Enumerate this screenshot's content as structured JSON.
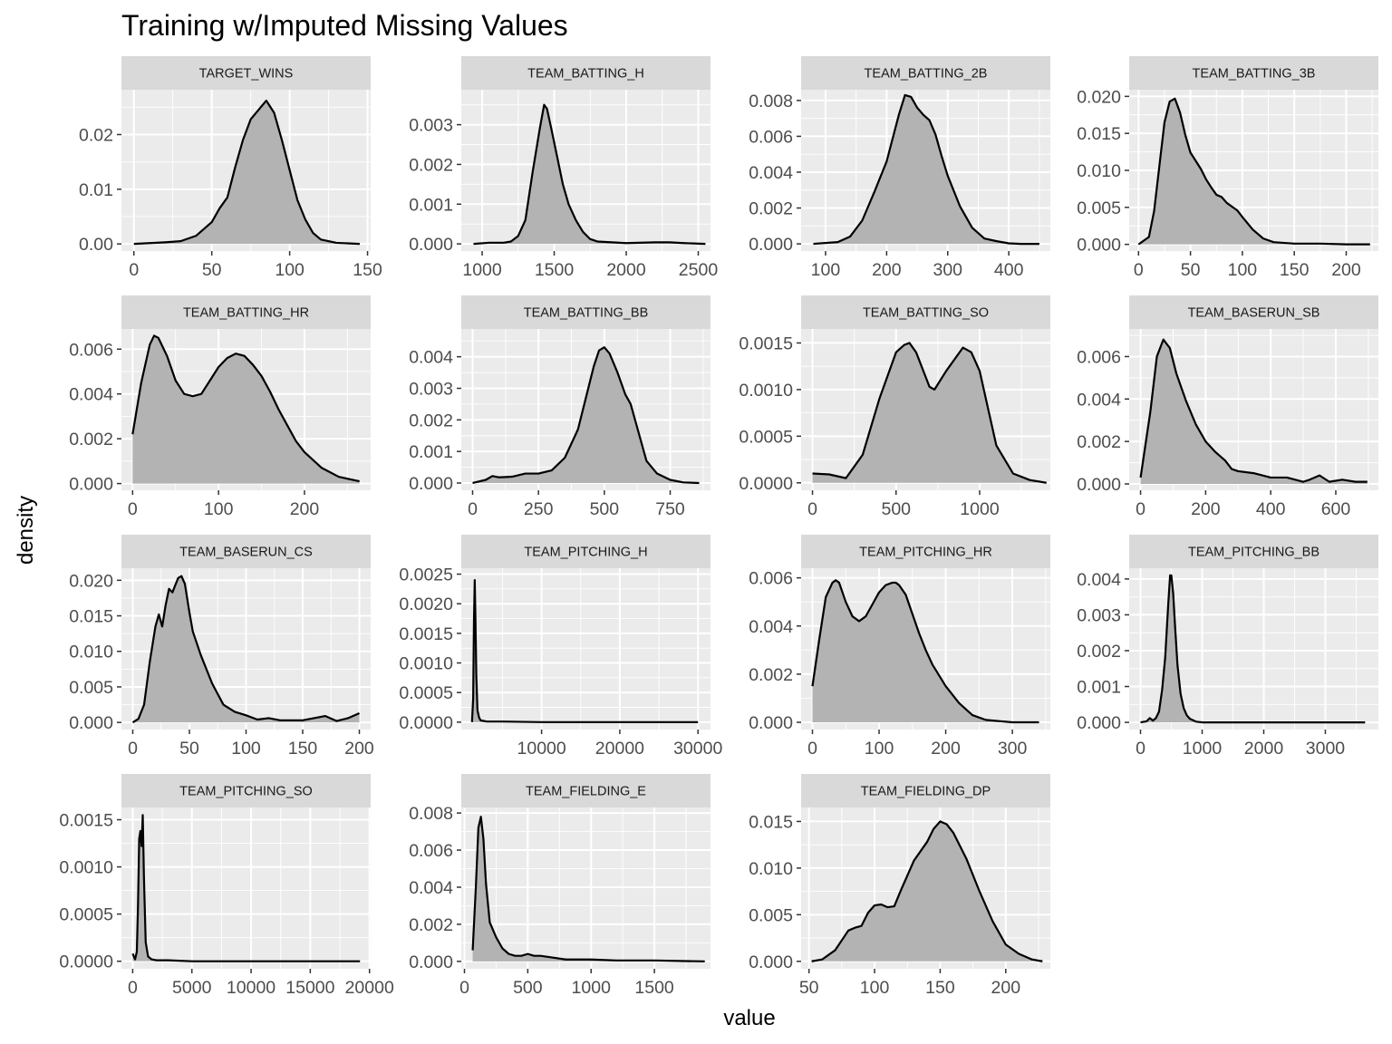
{
  "chart_data": {
    "type": "area",
    "title": "Training w/Imputed Missing Values",
    "xlabel": "value",
    "ylabel": "density",
    "layout": "facet_wrap 4 columns, free scales",
    "grid": true,
    "colors": {
      "panel_bg": "#ebebeb",
      "strip_bg": "#d9d9d9",
      "grid": "#ffffff",
      "fill": "#b3b3b3",
      "line": "#000000"
    },
    "panels": [
      {
        "name": "TARGET_WINS",
        "xlim": [
          -8,
          152
        ],
        "ylim": [
          -0.0013,
          0.0282
        ],
        "xticks": [
          0,
          50,
          100,
          150
        ],
        "yticks": [
          0,
          0.01,
          0.02
        ],
        "yticklabels": [
          "0.00",
          "0.01",
          "0.02"
        ],
        "x": [
          0,
          20,
          30,
          40,
          50,
          55,
          60,
          65,
          70,
          75,
          80,
          82,
          85,
          90,
          95,
          100,
          105,
          110,
          115,
          120,
          130,
          145
        ],
        "y": [
          0,
          0.0003,
          0.0005,
          0.0015,
          0.004,
          0.0065,
          0.0085,
          0.014,
          0.019,
          0.0228,
          0.0245,
          0.0252,
          0.0262,
          0.024,
          0.019,
          0.0135,
          0.008,
          0.0045,
          0.002,
          0.0008,
          0.0002,
          0
        ]
      },
      {
        "name": "TEAM_BATTING_H",
        "xlim": [
          855,
          2585
        ],
        "ylim": [
          -0.00018,
          0.00388
        ],
        "xticks": [
          1000,
          1500,
          2000,
          2500
        ],
        "yticks": [
          0,
          0.001,
          0.002,
          0.003
        ],
        "yticklabels": [
          "0.000",
          "0.001",
          "0.002",
          "0.003"
        ],
        "x": [
          940,
          1050,
          1150,
          1200,
          1250,
          1300,
          1350,
          1400,
          1430,
          1450,
          1480,
          1520,
          1560,
          1600,
          1650,
          1700,
          1750,
          1800,
          1900,
          2000,
          2200,
          2300,
          2400,
          2550
        ],
        "y": [
          0,
          3e-05,
          3e-05,
          6e-05,
          0.0002,
          0.0006,
          0.0018,
          0.0029,
          0.0035,
          0.0034,
          0.0029,
          0.0022,
          0.0015,
          0.001,
          0.0006,
          0.0003,
          0.00012,
          6e-05,
          4e-05,
          2e-05,
          4e-05,
          4e-05,
          2e-05,
          0
        ]
      },
      {
        "name": "TEAM_BATTING_2B",
        "xlim": [
          60,
          468
        ],
        "ylim": [
          -0.0004,
          0.0086
        ],
        "xticks": [
          100,
          200,
          300,
          400
        ],
        "yticks": [
          0,
          0.002,
          0.004,
          0.006,
          0.008
        ],
        "yticklabels": [
          "0.000",
          "0.002",
          "0.004",
          "0.006",
          "0.008"
        ],
        "x": [
          80,
          120,
          140,
          160,
          180,
          200,
          220,
          230,
          240,
          250,
          260,
          270,
          280,
          290,
          300,
          320,
          340,
          360,
          380,
          400,
          420,
          450
        ],
        "y": [
          0,
          0.0001,
          0.0004,
          0.0013,
          0.0029,
          0.0046,
          0.0072,
          0.0083,
          0.0082,
          0.0076,
          0.0072,
          0.0069,
          0.0061,
          0.0049,
          0.0038,
          0.0021,
          0.0009,
          0.0003,
          0.00015,
          3e-05,
          0,
          0
        ]
      },
      {
        "name": "TEAM_BATTING_3B",
        "xlim": [
          -9,
          231
        ],
        "ylim": [
          -0.0009,
          0.0209
        ],
        "xticks": [
          0,
          50,
          100,
          150,
          200
        ],
        "yticks": [
          0,
          0.005,
          0.01,
          0.015,
          0.02
        ],
        "yticklabels": [
          "0.000",
          "0.005",
          "0.010",
          "0.015",
          "0.020"
        ],
        "x": [
          0,
          10,
          15,
          20,
          25,
          30,
          35,
          40,
          45,
          50,
          55,
          60,
          65,
          70,
          75,
          80,
          85,
          90,
          95,
          100,
          110,
          120,
          130,
          150,
          175,
          200,
          223
        ],
        "y": [
          0,
          0.001,
          0.0045,
          0.0105,
          0.0165,
          0.0193,
          0.0197,
          0.0178,
          0.0148,
          0.0124,
          0.0113,
          0.0102,
          0.0088,
          0.0077,
          0.0067,
          0.0064,
          0.0056,
          0.0051,
          0.0046,
          0.0037,
          0.002,
          0.0008,
          0.0003,
          0.0001,
          0.0001,
          0,
          0
        ]
      },
      {
        "name": "TEAM_BATTING_HR",
        "xlim": [
          -13,
          277
        ],
        "ylim": [
          -0.0003,
          0.0069
        ],
        "xticks": [
          0,
          100,
          200
        ],
        "yticks": [
          0,
          0.002,
          0.004,
          0.006
        ],
        "yticklabels": [
          "0.000",
          "0.002",
          "0.004",
          "0.006"
        ],
        "x": [
          0,
          10,
          20,
          25,
          30,
          40,
          50,
          60,
          70,
          80,
          90,
          100,
          110,
          120,
          130,
          140,
          150,
          160,
          170,
          180,
          190,
          200,
          220,
          240,
          264
        ],
        "y": [
          0.0022,
          0.0045,
          0.0062,
          0.0066,
          0.0065,
          0.0057,
          0.0046,
          0.004,
          0.0039,
          0.004,
          0.0046,
          0.0052,
          0.0056,
          0.0058,
          0.0057,
          0.0053,
          0.0048,
          0.0041,
          0.0033,
          0.0026,
          0.0019,
          0.0014,
          0.0007,
          0.0003,
          0.0001
        ]
      },
      {
        "name": "TEAM_BATTING_BB",
        "xlim": [
          -43,
          903
        ],
        "ylim": [
          -0.00023,
          0.00488
        ],
        "xticks": [
          0,
          250,
          500,
          750
        ],
        "yticks": [
          0,
          0.001,
          0.002,
          0.003,
          0.004
        ],
        "yticklabels": [
          "0.000",
          "0.001",
          "0.002",
          "0.003",
          "0.004"
        ],
        "x": [
          0,
          50,
          75,
          100,
          150,
          200,
          250,
          300,
          350,
          400,
          430,
          460,
          480,
          500,
          520,
          550,
          580,
          600,
          630,
          660,
          700,
          750,
          800,
          860
        ],
        "y": [
          0,
          0.0001,
          0.00022,
          0.00018,
          0.0002,
          0.0003,
          0.0003,
          0.0004,
          0.0008,
          0.0017,
          0.0027,
          0.0037,
          0.0042,
          0.0043,
          0.0041,
          0.0035,
          0.0028,
          0.0025,
          0.0016,
          0.0007,
          0.0003,
          0.0001,
          2e-05,
          0
        ]
      },
      {
        "name": "TEAM_BATTING_SO",
        "xlim": [
          -68,
          1423
        ],
        "ylim": [
          -8e-05,
          0.00165
        ],
        "xticks": [
          0,
          500,
          1000
        ],
        "yticks": [
          0,
          0.0005,
          0.001,
          0.0015
        ],
        "yticklabels": [
          "0.0000",
          "0.0005",
          "0.0010",
          "0.0015"
        ],
        "x": [
          0,
          100,
          200,
          300,
          400,
          500,
          550,
          580,
          620,
          700,
          730,
          800,
          880,
          900,
          950,
          1000,
          1050,
          1100,
          1200,
          1300,
          1400
        ],
        "y": [
          0.0001,
          9e-05,
          5e-05,
          0.0003,
          0.0009,
          0.0014,
          0.00148,
          0.0015,
          0.0014,
          0.00103,
          0.001,
          0.0012,
          0.0014,
          0.00145,
          0.0014,
          0.0012,
          0.0008,
          0.0004,
          0.0001,
          3e-05,
          0
        ]
      },
      {
        "name": "TEAM_BASERUN_SB",
        "xlim": [
          -35,
          731
        ],
        "ylim": [
          -0.0003,
          0.0073
        ],
        "xticks": [
          0,
          200,
          400,
          600
        ],
        "yticks": [
          0,
          0.002,
          0.004,
          0.006
        ],
        "yticklabels": [
          "0.000",
          "0.002",
          "0.004",
          "0.006"
        ],
        "x": [
          0,
          30,
          50,
          70,
          90,
          110,
          140,
          170,
          200,
          230,
          260,
          280,
          300,
          350,
          400,
          450,
          500,
          520,
          550,
          580,
          620,
          660,
          697
        ],
        "y": [
          0.0003,
          0.0034,
          0.006,
          0.0068,
          0.0064,
          0.0052,
          0.0039,
          0.0028,
          0.002,
          0.0015,
          0.0011,
          0.0007,
          0.0006,
          0.0005,
          0.0003,
          0.0003,
          0.0001,
          0.0002,
          0.0004,
          0.0001,
          0.0002,
          0.0001,
          0.0001
        ]
      },
      {
        "name": "TEAM_BASERUN_CS",
        "xlim": [
          -10,
          210
        ],
        "ylim": [
          -0.001,
          0.0217
        ],
        "xticks": [
          0,
          50,
          100,
          150,
          200
        ],
        "yticks": [
          0,
          0.005,
          0.01,
          0.015,
          0.02
        ],
        "yticklabels": [
          "0.000",
          "0.005",
          "0.010",
          "0.015",
          "0.020"
        ],
        "x": [
          0,
          5,
          10,
          15,
          20,
          23,
          26,
          29,
          32,
          35,
          38,
          40,
          43,
          46,
          48,
          50,
          53,
          60,
          70,
          80,
          90,
          100,
          110,
          120,
          130,
          150,
          160,
          170,
          180,
          190,
          200
        ],
        "y": [
          0,
          0.0005,
          0.0025,
          0.0085,
          0.0135,
          0.0152,
          0.0135,
          0.0165,
          0.0188,
          0.0183,
          0.0195,
          0.0203,
          0.0206,
          0.0195,
          0.0175,
          0.0155,
          0.0128,
          0.0095,
          0.0055,
          0.0025,
          0.0015,
          0.001,
          0.0004,
          0.0006,
          0.0003,
          0.0003,
          0.0006,
          0.0009,
          0.0002,
          0.0006,
          0.0013
        ]
      },
      {
        "name": "TEAM_PITCHING_H",
        "xlim": [
          -270,
          31600
        ],
        "ylim": [
          -0.000125,
          0.0026
        ],
        "xticks": [
          10000,
          20000,
          30000
        ],
        "yticks": [
          0,
          0.0005,
          0.001,
          0.0015,
          0.002,
          0.0025
        ],
        "yticklabels": [
          "0.0000",
          "0.0005",
          "0.0010",
          "0.0015",
          "0.0020",
          "0.0025"
        ],
        "x": [
          1100,
          1250,
          1350,
          1450,
          1550,
          1650,
          1800,
          2000,
          2200,
          3000,
          5000,
          10000,
          20000,
          30000
        ],
        "y": [
          0,
          0.0004,
          0.0017,
          0.0024,
          0.0017,
          0.0008,
          0.0002,
          8e-05,
          3e-05,
          1e-05,
          1e-05,
          0,
          0,
          0
        ]
      },
      {
        "name": "TEAM_PITCHING_HR",
        "xlim": [
          -17,
          357
        ],
        "ylim": [
          -0.0003,
          0.0064
        ],
        "xticks": [
          0,
          100,
          200,
          300
        ],
        "yticks": [
          0,
          0.002,
          0.004,
          0.006
        ],
        "yticklabels": [
          "0.000",
          "0.002",
          "0.004",
          "0.006"
        ],
        "x": [
          0,
          10,
          20,
          30,
          35,
          40,
          50,
          60,
          70,
          80,
          90,
          100,
          110,
          120,
          125,
          130,
          140,
          150,
          160,
          170,
          180,
          200,
          220,
          240,
          260,
          280,
          300,
          340
        ],
        "y": [
          0.0015,
          0.0034,
          0.0052,
          0.0058,
          0.0059,
          0.0058,
          0.005,
          0.0044,
          0.0042,
          0.0044,
          0.0049,
          0.0054,
          0.0057,
          0.0058,
          0.0058,
          0.0057,
          0.0053,
          0.0045,
          0.0037,
          0.003,
          0.0024,
          0.0015,
          0.0008,
          0.0003,
          0.0001,
          5e-05,
          0,
          0
        ]
      },
      {
        "name": "TEAM_PITCHING_BB",
        "xlim": [
          -184,
          3861
        ],
        "ylim": [
          -0.0002,
          0.0043
        ],
        "xticks": [
          0,
          1000,
          2000,
          3000
        ],
        "yticks": [
          0,
          0.001,
          0.002,
          0.003,
          0.004
        ],
        "yticklabels": [
          "0.000",
          "0.001",
          "0.002",
          "0.003",
          "0.004"
        ],
        "x": [
          0,
          100,
          150,
          200,
          250,
          300,
          350,
          400,
          450,
          480,
          500,
          530,
          560,
          600,
          650,
          700,
          750,
          800,
          900,
          1000,
          1500,
          2000,
          3000,
          3645
        ],
        "y": [
          0,
          3e-05,
          0.00012,
          5e-05,
          0.00012,
          0.0003,
          0.0009,
          0.0018,
          0.0033,
          0.0041,
          0.0041,
          0.0036,
          0.0027,
          0.0016,
          0.0008,
          0.0004,
          0.0002,
          0.0001,
          2e-05,
          0,
          0,
          0,
          0,
          0
        ]
      },
      {
        "name": "TEAM_PITCHING_SO",
        "xlim": [
          -950,
          20100
        ],
        "ylim": [
          -8e-05,
          0.00163
        ],
        "xticks": [
          0,
          5000,
          10000,
          15000,
          20000
        ],
        "yticks": [
          0,
          0.0005,
          0.001,
          0.0015
        ],
        "yticklabels": [
          "0.0000",
          "0.0005",
          "0.0010",
          "0.0015"
        ],
        "x": [
          0,
          200,
          350,
          450,
          550,
          650,
          750,
          850,
          950,
          1100,
          1300,
          1600,
          2000,
          3000,
          5000,
          10000,
          19200
        ],
        "y": [
          8e-05,
          2e-05,
          0.0001,
          0.0006,
          0.0013,
          0.00138,
          0.00122,
          0.00155,
          0.0009,
          0.0002,
          5e-05,
          2e-05,
          1e-05,
          1e-05,
          0,
          0,
          0
        ]
      },
      {
        "name": "TEAM_FIELDING_E",
        "xlim": [
          -25,
          1943
        ],
        "ylim": [
          -0.0004,
          0.0083
        ],
        "xticks": [
          0,
          500,
          1000,
          1500
        ],
        "yticks": [
          0,
          0.002,
          0.004,
          0.006,
          0.008
        ],
        "yticklabels": [
          "0.000",
          "0.002",
          "0.004",
          "0.006",
          "0.008"
        ],
        "x": [
          65,
          90,
          110,
          130,
          150,
          170,
          200,
          250,
          300,
          350,
          400,
          450,
          500,
          550,
          600,
          700,
          800,
          1000,
          1200,
          1500,
          1700,
          1898
        ],
        "y": [
          0.0006,
          0.004,
          0.0072,
          0.0078,
          0.0066,
          0.0042,
          0.0021,
          0.0013,
          0.0007,
          0.0004,
          0.0003,
          0.0003,
          0.0004,
          0.0003,
          0.0003,
          0.0002,
          0.0001,
          0.0001,
          5e-05,
          5e-05,
          2e-05,
          0
        ]
      },
      {
        "name": "TEAM_FIELDING_DP",
        "xlim": [
          44,
          234
        ],
        "ylim": [
          -0.0008,
          0.0165
        ],
        "xticks": [
          50,
          100,
          150,
          200
        ],
        "yticks": [
          0,
          0.005,
          0.01,
          0.015
        ],
        "yticklabels": [
          "0.000",
          "0.005",
          "0.010",
          "0.015"
        ],
        "x": [
          52,
          60,
          70,
          80,
          85,
          90,
          95,
          100,
          105,
          110,
          115,
          120,
          130,
          140,
          145,
          150,
          155,
          160,
          170,
          180,
          190,
          200,
          210,
          215,
          220,
          228
        ],
        "y": [
          0,
          0.0002,
          0.0012,
          0.0033,
          0.0036,
          0.0038,
          0.0052,
          0.006,
          0.0061,
          0.0058,
          0.0059,
          0.0076,
          0.0108,
          0.0128,
          0.0142,
          0.015,
          0.0147,
          0.0138,
          0.011,
          0.0075,
          0.0043,
          0.0018,
          0.0008,
          0.0005,
          0.0002,
          0
        ]
      }
    ]
  }
}
